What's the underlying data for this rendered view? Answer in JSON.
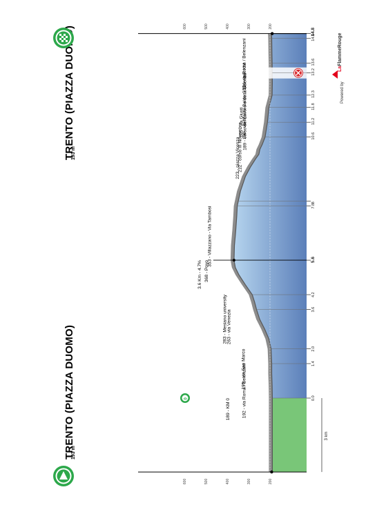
{
  "start": {
    "name": "TRENTO (PIAZZA DUOMO)",
    "altitude": "193 m",
    "icon": "start-flag-icon"
  },
  "finish": {
    "name": "TRENTO (PIAZZA DUOMO)",
    "altitude": "193 m",
    "icon": "finish-flag-icon"
  },
  "branding": {
    "powered_by": "Powered by",
    "brand_prefix": "La",
    "brand_main": "FlammeRouge"
  },
  "colors": {
    "profile_blue_light": "#b5d4ee",
    "profile_blue_dark": "#5b7fb9",
    "neutral_green": "#79c678",
    "ground_grey": "#8c8c8c",
    "gpm_red": "#d7262b",
    "icon_green": "#2da84b"
  },
  "chart_data": {
    "type": "area",
    "orientation": "rotated-90",
    "title": "",
    "xlabel": "",
    "ylabel": "",
    "ylim": [
      0,
      600
    ],
    "y_ticks": [
      "600",
      "500",
      "400",
      "300",
      "200"
    ],
    "x_ticks": [
      "0.0",
      "1.4",
      "2.0",
      "3.6",
      "4.2",
      "5.6",
      "7.8",
      "8",
      "10.6",
      "11.2",
      "11.8",
      "12.3",
      "13.2",
      "13.6",
      "14.6",
      "14.8"
    ],
    "bold_ticks": [
      "5.6",
      "14.8"
    ],
    "neutral_label": "3 km",
    "neutral_km": 3,
    "profile": [
      {
        "km": -3,
        "alt": 189
      },
      {
        "km": 0,
        "alt": 189
      },
      {
        "km": 0.5,
        "alt": 190
      },
      {
        "km": 1.0,
        "alt": 192
      },
      {
        "km": 1.4,
        "alt": 192
      },
      {
        "km": 2.0,
        "alt": 195
      },
      {
        "km": 2.4,
        "alt": 205
      },
      {
        "km": 2.8,
        "alt": 225
      },
      {
        "km": 3.2,
        "alt": 248
      },
      {
        "km": 3.6,
        "alt": 263
      },
      {
        "km": 3.9,
        "alt": 272
      },
      {
        "km": 4.2,
        "alt": 283
      },
      {
        "km": 4.6,
        "alt": 315
      },
      {
        "km": 5.0,
        "alt": 345
      },
      {
        "km": 5.3,
        "alt": 362
      },
      {
        "km": 5.6,
        "alt": 368
      },
      {
        "km": 6.2,
        "alt": 366
      },
      {
        "km": 6.8,
        "alt": 360
      },
      {
        "km": 7.4,
        "alt": 355
      },
      {
        "km": 7.8,
        "alt": 353
      },
      {
        "km": 8.4,
        "alt": 338
      },
      {
        "km": 9.0,
        "alt": 315
      },
      {
        "km": 9.4,
        "alt": 290
      },
      {
        "km": 9.7,
        "alt": 268
      },
      {
        "km": 9.9,
        "alt": 252
      },
      {
        "km": 10.1,
        "alt": 247
      },
      {
        "km": 10.3,
        "alt": 236
      },
      {
        "km": 10.6,
        "alt": 223
      },
      {
        "km": 11.2,
        "alt": 212
      },
      {
        "km": 11.8,
        "alt": 205
      },
      {
        "km": 12.3,
        "alt": 190
      },
      {
        "km": 12.8,
        "alt": 189
      },
      {
        "km": 13.6,
        "alt": 190
      },
      {
        "km": 14.0,
        "alt": 191
      },
      {
        "km": 14.6,
        "alt": 192
      },
      {
        "km": 14.8,
        "alt": 193
      }
    ],
    "waypoints": [
      {
        "km": 0.0,
        "label": "189 - KM 0",
        "marker": "km0"
      },
      {
        "km": 1.4,
        "label": "192 - via Roma / Belenzani"
      },
      {
        "km": 2.0,
        "label": "195 - via San Marco"
      },
      {
        "km": 3.6,
        "label": "263 - via Venezia"
      },
      {
        "km": 4.2,
        "label": "283 - Mesiano university"
      },
      {
        "km": 5.6,
        "label": "368 - Povo",
        "sublabel": "3.6 Km - 4.7%",
        "peak": true
      },
      {
        "km": 7.8,
        "label": "353 - Villazzano - Via Tambosi"
      },
      {
        "km": 10.6,
        "label": "223 - piazza Vicenza"
      },
      {
        "km": 11.2,
        "label": "212 - corso III Novembre"
      },
      {
        "km": 11.8,
        "label": "205 - via Giusti"
      },
      {
        "km": 12.3,
        "label": "190 - via Monte Baldo"
      },
      {
        "km": 13.2,
        "label": "189 - corso del Lavoro e della Scienza",
        "marker": "gpm"
      },
      {
        "km": 13.6,
        "label": "190 - last KM"
      },
      {
        "km": 14.6,
        "label": "192 - via Roma / Belenzani"
      }
    ]
  }
}
